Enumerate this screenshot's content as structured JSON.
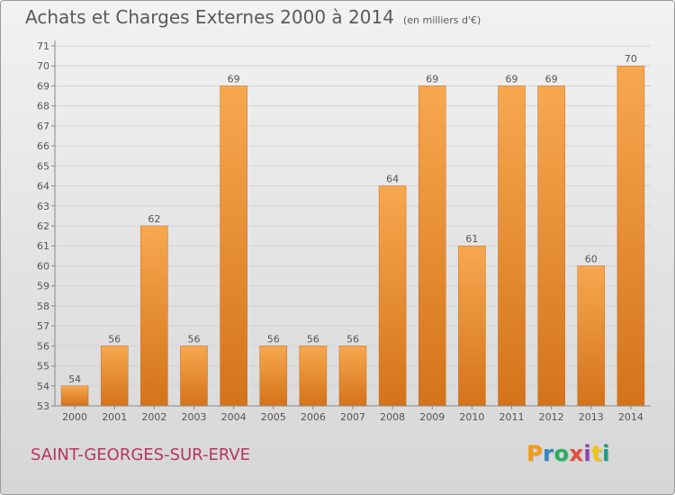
{
  "header": {
    "title": "Achats et Charges Externes 2000 à 2014",
    "unit_note": "(en milliers d'€)"
  },
  "footer": {
    "commune": "SAINT-GEORGES-SUR-ERVE",
    "logo_text": "Proxiti",
    "logo_colors": [
      "#f39c12",
      "#2e86c1",
      "#27ae60",
      "#e74c3c",
      "#8e44ad",
      "#f1c40f",
      "#16a085"
    ]
  },
  "colors": {
    "bar_top": "#f7a84f",
    "bar_bottom": "#d4731a",
    "grid": "#d4d4d4",
    "text": "#555555",
    "commune": "#b5365c"
  },
  "chart_data": {
    "type": "bar",
    "title": "Achats et Charges Externes 2000 à 2014",
    "subtitle": "(en milliers d'€)",
    "categories": [
      "2000",
      "2001",
      "2002",
      "2003",
      "2004",
      "2005",
      "2006",
      "2007",
      "2008",
      "2009",
      "2010",
      "2011",
      "2012",
      "2013",
      "2014"
    ],
    "values": [
      54,
      56,
      62,
      56,
      69,
      56,
      56,
      56,
      64,
      69,
      61,
      69,
      69,
      60,
      70
    ],
    "ylim": [
      53,
      71
    ],
    "yticks": [
      53,
      54,
      55,
      56,
      57,
      58,
      59,
      60,
      61,
      62,
      63,
      64,
      65,
      66,
      67,
      68,
      69,
      70,
      71
    ],
    "xlabel": "",
    "ylabel": "",
    "grid": true,
    "data_labels": true
  }
}
